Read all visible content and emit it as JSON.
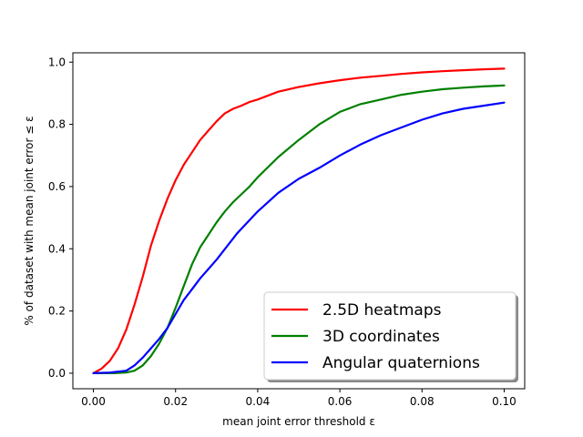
{
  "chart_data": {
    "type": "line",
    "title": "",
    "xlabel": "mean joint error threshold ε",
    "ylabel": "% of dataset with mean joint error ≤ ε",
    "xlim": [
      -0.005,
      0.105
    ],
    "ylim": [
      -0.05,
      1.03
    ],
    "xticks": [
      0.0,
      0.02,
      0.04,
      0.06,
      0.08,
      0.1
    ],
    "xtick_labels": [
      "0.00",
      "0.02",
      "0.04",
      "0.06",
      "0.08",
      "0.10"
    ],
    "yticks": [
      0.0,
      0.2,
      0.4,
      0.6,
      0.8,
      1.0
    ],
    "ytick_labels": [
      "0.0",
      "0.2",
      "0.4",
      "0.6",
      "0.8",
      "1.0"
    ],
    "grid": false,
    "legend": {
      "placement": "lower-right",
      "shadow": true
    },
    "series": [
      {
        "name": "2.5D heatmaps",
        "color": "#ff0000",
        "x": [
          0.0,
          0.002,
          0.004,
          0.006,
          0.008,
          0.01,
          0.012,
          0.014,
          0.016,
          0.018,
          0.02,
          0.022,
          0.024,
          0.026,
          0.028,
          0.03,
          0.032,
          0.034,
          0.036,
          0.038,
          0.04,
          0.045,
          0.05,
          0.055,
          0.06,
          0.065,
          0.07,
          0.075,
          0.08,
          0.085,
          0.09,
          0.095,
          0.1
        ],
        "y": [
          0.0,
          0.015,
          0.04,
          0.08,
          0.14,
          0.22,
          0.31,
          0.41,
          0.49,
          0.56,
          0.62,
          0.67,
          0.71,
          0.75,
          0.78,
          0.81,
          0.835,
          0.85,
          0.86,
          0.872,
          0.88,
          0.905,
          0.92,
          0.932,
          0.942,
          0.95,
          0.956,
          0.962,
          0.967,
          0.971,
          0.974,
          0.977,
          0.979
        ]
      },
      {
        "name": "3D coordinates",
        "color": "#008000",
        "x": [
          0.0,
          0.005,
          0.008,
          0.01,
          0.012,
          0.014,
          0.016,
          0.018,
          0.02,
          0.022,
          0.024,
          0.026,
          0.028,
          0.03,
          0.032,
          0.034,
          0.036,
          0.038,
          0.04,
          0.045,
          0.05,
          0.055,
          0.06,
          0.065,
          0.07,
          0.075,
          0.08,
          0.085,
          0.09,
          0.095,
          0.1
        ],
        "y": [
          0.0,
          0.0,
          0.002,
          0.008,
          0.025,
          0.055,
          0.095,
          0.145,
          0.21,
          0.28,
          0.35,
          0.405,
          0.445,
          0.485,
          0.52,
          0.55,
          0.575,
          0.6,
          0.63,
          0.695,
          0.75,
          0.8,
          0.84,
          0.865,
          0.88,
          0.895,
          0.905,
          0.913,
          0.918,
          0.922,
          0.925
        ]
      },
      {
        "name": "Angular quaternions",
        "color": "#0000ff",
        "x": [
          0.0,
          0.004,
          0.008,
          0.01,
          0.012,
          0.014,
          0.016,
          0.018,
          0.02,
          0.022,
          0.024,
          0.026,
          0.028,
          0.03,
          0.035,
          0.04,
          0.045,
          0.05,
          0.055,
          0.06,
          0.065,
          0.07,
          0.075,
          0.08,
          0.085,
          0.09,
          0.095,
          0.1
        ],
        "y": [
          0.0,
          0.002,
          0.008,
          0.025,
          0.05,
          0.08,
          0.11,
          0.145,
          0.19,
          0.235,
          0.27,
          0.305,
          0.335,
          0.365,
          0.45,
          0.52,
          0.58,
          0.625,
          0.66,
          0.7,
          0.735,
          0.765,
          0.79,
          0.815,
          0.835,
          0.85,
          0.86,
          0.87
        ]
      }
    ]
  }
}
